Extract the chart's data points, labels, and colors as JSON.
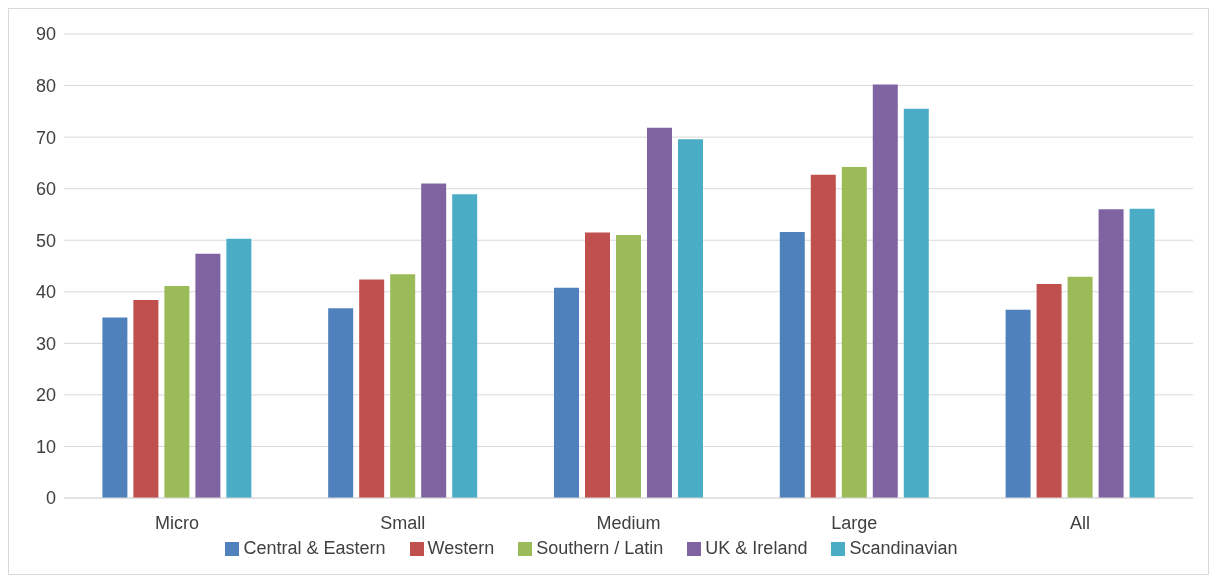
{
  "chart_data": {
    "type": "bar",
    "categories": [
      "Micro",
      "Small",
      "Medium",
      "Large",
      "All"
    ],
    "series": [
      {
        "name": "Central & Eastern",
        "color": "#4f81bd",
        "values": [
          35.0,
          36.8,
          40.8,
          51.6,
          36.5
        ]
      },
      {
        "name": "Western",
        "color": "#c0504d",
        "values": [
          38.4,
          42.4,
          51.5,
          62.7,
          41.5
        ]
      },
      {
        "name": "Southern / Latin",
        "color": "#9bbb59",
        "values": [
          41.1,
          43.4,
          51.0,
          64.2,
          42.9
        ]
      },
      {
        "name": "UK & Ireland",
        "color": "#8064a2",
        "values": [
          47.4,
          61.0,
          71.8,
          80.2,
          56.0
        ]
      },
      {
        "name": "Scandinavian",
        "color": "#4bacc6",
        "values": [
          50.3,
          58.9,
          69.6,
          75.5,
          56.1
        ]
      }
    ],
    "ylim": [
      0,
      90
    ],
    "yticks": [
      0,
      10,
      20,
      30,
      40,
      50,
      60,
      70,
      80,
      90
    ],
    "grid": "y",
    "legend": "bottom"
  }
}
